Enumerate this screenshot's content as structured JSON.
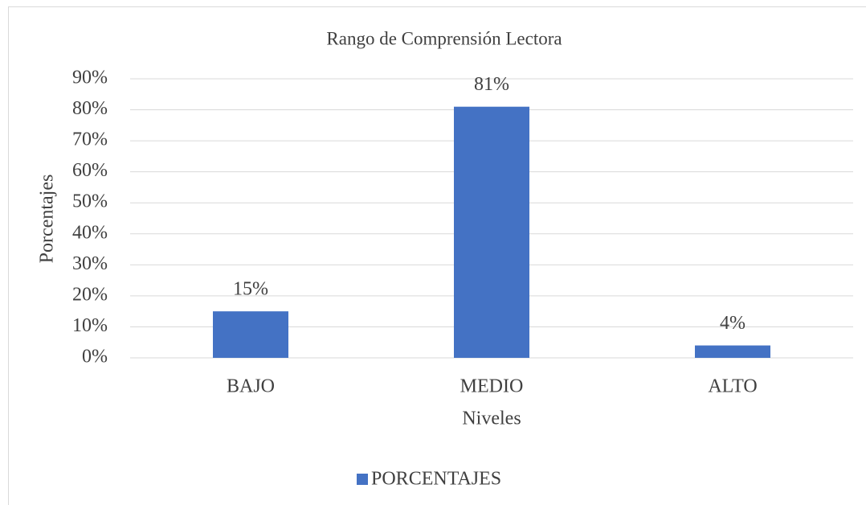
{
  "chart_data": {
    "type": "bar",
    "title": "Rango de Comprensión Lectora",
    "x_label": "Niveles",
    "y_label": "Porcentajes",
    "categories": [
      "BAJO",
      "MEDIO",
      "ALTO"
    ],
    "series": [
      {
        "name": "PORCENTAJES",
        "color": "#4472c4",
        "values": [
          15,
          81,
          4
        ],
        "value_labels": [
          "15%",
          "81%",
          "4%"
        ]
      }
    ],
    "ylim": [
      0,
      90
    ],
    "yticks": [
      {
        "value": 0,
        "label": "0%"
      },
      {
        "value": 10,
        "label": "10%"
      },
      {
        "value": 20,
        "label": "20%"
      },
      {
        "value": 30,
        "label": "30%"
      },
      {
        "value": 40,
        "label": "40%"
      },
      {
        "value": 50,
        "label": "50%"
      },
      {
        "value": 60,
        "label": "60%"
      },
      {
        "value": 70,
        "label": "70%"
      },
      {
        "value": 80,
        "label": "80%"
      },
      {
        "value": 90,
        "label": "90%"
      }
    ],
    "grid": true,
    "legend": "bottom"
  }
}
